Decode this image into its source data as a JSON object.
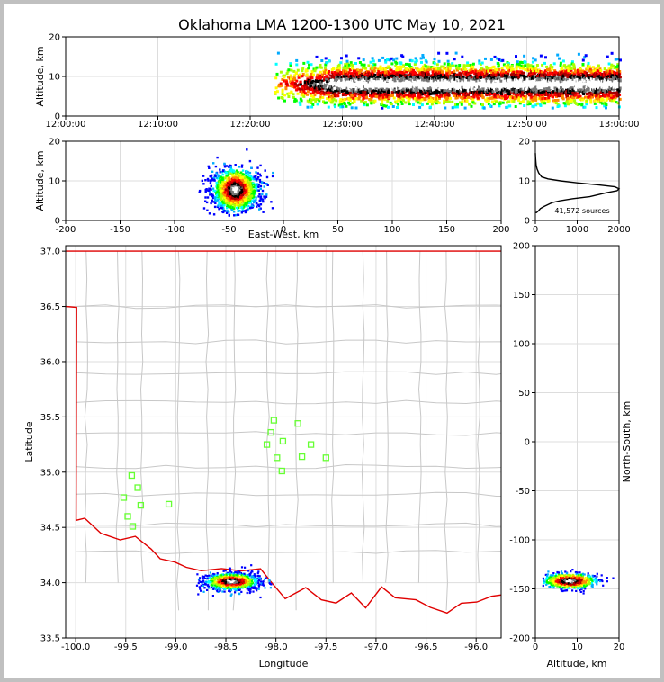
{
  "title": "Oklahoma LMA 1200-1300 UTC May 10, 2021",
  "chart_data": [
    {
      "type": "heatmap",
      "id": "altitude-time",
      "ylabel": "Altitude, km",
      "xlabel": "",
      "xlim": [
        "12:00:00",
        "13:00:00"
      ],
      "xticks": [
        "12:00:00",
        "12:10:00",
        "12:20:00",
        "12:30:00",
        "12:40:00",
        "12:50:00",
        "13:00:00"
      ],
      "ylim": [
        0,
        20
      ],
      "yticks": [
        0,
        10,
        20
      ],
      "grid": true,
      "activity_start": "12:22:30",
      "activity_end": "13:00:00",
      "altitude_core_km": 8,
      "altitude_spread_km": [
        2,
        16
      ]
    },
    {
      "type": "heatmap",
      "id": "altitude-eastwest",
      "xlabel": "East-West, km",
      "ylabel": "Altitude, km",
      "xlim": [
        -200,
        200
      ],
      "xticks": [
        -200,
        -150,
        -100,
        -50,
        0,
        50,
        100,
        150,
        200
      ],
      "ylim": [
        0,
        20
      ],
      "yticks": [
        0,
        10,
        20
      ],
      "grid": true,
      "cluster_center": [
        -45,
        8
      ],
      "cluster_spread_x": [
        -85,
        -5
      ]
    },
    {
      "type": "line",
      "id": "altitude-histogram",
      "xlim": [
        0,
        2000
      ],
      "xticks": [
        0,
        1000,
        2000
      ],
      "ylim": [
        0,
        20
      ],
      "yticks": [
        0,
        10,
        20
      ],
      "annotation": "41,572 sources",
      "x": [
        0,
        30,
        80,
        120,
        200,
        300,
        400,
        600,
        900,
        1300,
        1700,
        1950,
        2000,
        1900,
        1500,
        1000,
        600,
        300,
        150,
        80,
        40,
        20,
        10,
        5,
        0
      ],
      "y": [
        2,
        2,
        2.5,
        3,
        3.5,
        4,
        4.5,
        5,
        5.5,
        6,
        7,
        7.5,
        8,
        8.5,
        9,
        9.5,
        10,
        10.5,
        11,
        12,
        13,
        14,
        15,
        16,
        17
      ]
    },
    {
      "type": "scatter",
      "id": "map",
      "xlabel": "Longitude",
      "ylabel": "Latitude",
      "xlim": [
        -100.1,
        -95.75
      ],
      "ylim": [
        33.5,
        37.05
      ],
      "xticks": [
        -100.0,
        -99.5,
        -99.0,
        -98.5,
        -98.0,
        -97.5,
        -97.0,
        -96.5,
        -96.0
      ],
      "yticks": [
        33.5,
        34.0,
        34.5,
        35.0,
        35.5,
        36.0,
        36.5,
        37.0
      ],
      "grid": true,
      "stations": [
        [
          -98.02,
          35.47
        ],
        [
          -97.78,
          35.44
        ],
        [
          -98.05,
          35.36
        ],
        [
          -97.93,
          35.28
        ],
        [
          -98.09,
          35.25
        ],
        [
          -97.65,
          35.25
        ],
        [
          -97.99,
          35.13
        ],
        [
          -97.74,
          35.14
        ],
        [
          -97.5,
          35.13
        ],
        [
          -97.94,
          35.01
        ],
        [
          -99.44,
          34.97
        ],
        [
          -99.38,
          34.86
        ],
        [
          -99.52,
          34.77
        ],
        [
          -99.35,
          34.7
        ],
        [
          -99.07,
          34.71
        ],
        [
          -99.48,
          34.6
        ],
        [
          -99.43,
          34.51
        ]
      ],
      "lightning_center": [
        -98.45,
        34.02
      ],
      "lightning_spread_lon": [
        -98.8,
        -98.05
      ]
    },
    {
      "type": "heatmap",
      "id": "northsouth-altitude",
      "xlabel": "Altitude, km",
      "ylabel": "North-South, km",
      "xlim": [
        0,
        20
      ],
      "xticks": [
        0,
        10,
        20
      ],
      "ylim": [
        -200,
        200
      ],
      "yticks": [
        -200,
        -150,
        -100,
        -50,
        0,
        50,
        100,
        150,
        200
      ],
      "grid": true,
      "cluster_center": [
        8,
        -141
      ]
    }
  ]
}
